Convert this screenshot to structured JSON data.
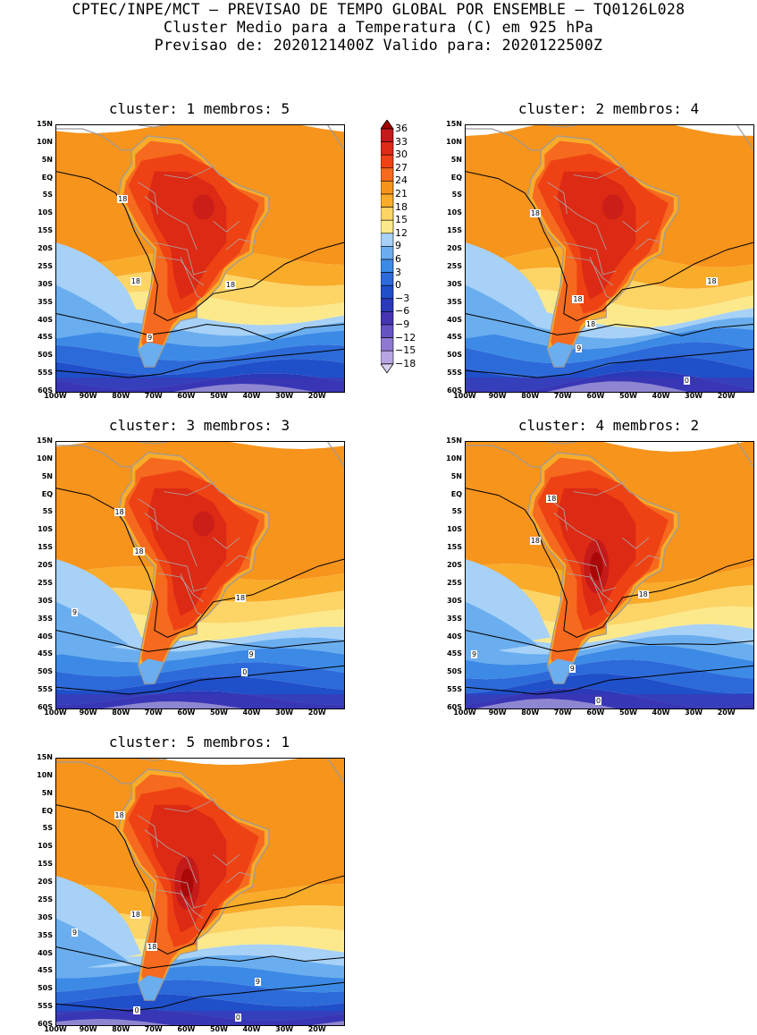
{
  "header": {
    "line1": "CPTEC/INPE/MCT – PREVISAO DE TEMPO GLOBAL POR ENSEMBLE – TQ0126L028",
    "line2": "Cluster Medio para a Temperatura (C) em 925 hPa",
    "line3": "Previsao de: 2020121400Z    Valido para: 2020122500Z"
  },
  "axes": {
    "lat_labels": [
      "15N",
      "10N",
      "5N",
      "EQ",
      "5S",
      "10S",
      "15S",
      "20S",
      "25S",
      "30S",
      "35S",
      "40S",
      "45S",
      "50S",
      "55S",
      "60S"
    ],
    "lon_labels": [
      "100W",
      "90W",
      "80W",
      "70W",
      "60W",
      "50W",
      "40W",
      "30W",
      "20W"
    ]
  },
  "colorbar": {
    "labels": [
      "36",
      "33",
      "30",
      "27",
      "24",
      "21",
      "18",
      "15",
      "12",
      "9",
      "6",
      "3",
      "0",
      "-3",
      "-6",
      "-9",
      "-12",
      "-15",
      "-18"
    ],
    "colors": [
      "#a00000",
      "#c41a1a",
      "#dc2a14",
      "#ee4214",
      "#f56a1e",
      "#f7941c",
      "#f9ab2a",
      "#fdd466",
      "#fbe98c",
      "#a7d1f7",
      "#6aaeef",
      "#3c8ae6",
      "#2d6ad9",
      "#1f4fc9",
      "#2a39b8",
      "#4535b3",
      "#6653c2",
      "#8f78d3",
      "#b7a6e3",
      "#dbd2f1"
    ],
    "arrow_top": "#a00000",
    "arrow_bottom": "#dbd2f1"
  },
  "panels": [
    {
      "title": "cluster: 1   membros: 5",
      "contour_labels": [
        "18",
        "18",
        "18",
        "9"
      ],
      "variant": 1
    },
    {
      "title": "cluster: 2   membros: 4",
      "contour_labels": [
        "18",
        "18",
        "18",
        "18",
        "9",
        "0"
      ],
      "variant": 2
    },
    {
      "title": "cluster: 3   membros: 3",
      "contour_labels": [
        "18",
        "18",
        "18",
        "9",
        "9",
        "0"
      ],
      "variant": 3
    },
    {
      "title": "cluster: 4   membros: 2",
      "contour_labels": [
        "18",
        "18",
        "18",
        "9",
        "9",
        "0"
      ],
      "variant": 4
    },
    {
      "title": "cluster: 5   membros: 1",
      "contour_labels": [
        "18",
        "18",
        "18",
        "9",
        "9",
        "0",
        "0"
      ],
      "variant": 5
    }
  ]
}
